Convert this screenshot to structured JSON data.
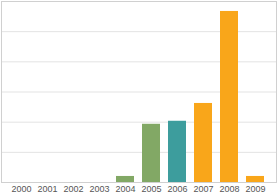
{
  "chart_data": {
    "type": "bar",
    "categories": [
      "2000",
      "2001",
      "2002",
      "2003",
      "2004",
      "2005",
      "2006",
      "2007",
      "2008",
      "2009"
    ],
    "values": [
      0,
      0,
      0,
      0,
      0.2,
      1.93,
      2.03,
      2.62,
      5.67,
      0.2
    ],
    "colors": [
      "#f9a61a",
      "#f9a61a",
      "#f9a61a",
      "#f9a61a",
      "#82a865",
      "#82a865",
      "#3d9d9d",
      "#f9a61a",
      "#f9a61a",
      "#f9a61a"
    ],
    "ylim": [
      0,
      6
    ],
    "yticks": [
      0,
      1,
      2,
      3,
      4,
      5,
      6
    ],
    "grid": true,
    "tick_labels": "x"
  }
}
